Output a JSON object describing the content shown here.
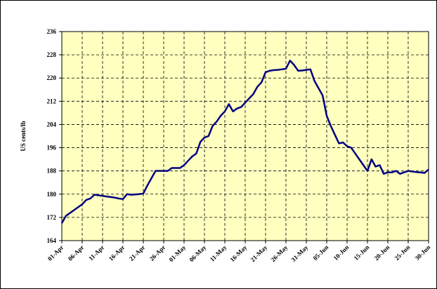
{
  "chart_data": {
    "type": "line",
    "y_label": "US cents/lb",
    "categories": [
      "01-Apr",
      null,
      null,
      null,
      null,
      "06-Apr",
      null,
      null,
      null,
      null,
      "11-Apr",
      null,
      null,
      null,
      null,
      "16-Apr",
      null,
      null,
      null,
      null,
      "21-Apr",
      null,
      null,
      null,
      null,
      "26-Apr",
      null,
      null,
      null,
      null,
      "01-May",
      null,
      null,
      null,
      null,
      "06-May",
      null,
      null,
      null,
      null,
      "11-May",
      null,
      null,
      null,
      null,
      "16-May",
      null,
      null,
      null,
      null,
      "21-May",
      null,
      null,
      null,
      null,
      "26-May",
      null,
      null,
      null,
      null,
      "31-May",
      null,
      null,
      null,
      null,
      "05-Jun",
      null,
      null,
      null,
      null,
      "10-Jun",
      null,
      null,
      null,
      null,
      "15-Jun",
      null,
      null,
      null,
      null,
      "20-Jun",
      null,
      null,
      null,
      null,
      "25-Jun",
      null,
      null,
      null,
      null,
      "30-Jun"
    ],
    "values": [
      170,
      172.5,
      173.5,
      174.5,
      175.5,
      176.5,
      178,
      178.5,
      179.8,
      179.6,
      179.4,
      179.2,
      179,
      178.8,
      178.5,
      178.3,
      180,
      179.8,
      179.9,
      180,
      180.2,
      183,
      185.5,
      188,
      188,
      188,
      188,
      189,
      189,
      189,
      190,
      191.5,
      193,
      194,
      198,
      199.5,
      200,
      203.5,
      205,
      207,
      208.5,
      211,
      208.5,
      209.5,
      210,
      211.5,
      213,
      214.5,
      217,
      218.5,
      222,
      222.5,
      222.7,
      222.8,
      223,
      223.2,
      226,
      224.5,
      222.5,
      222.6,
      222.8,
      223,
      219,
      216.5,
      214,
      207,
      203.5,
      200.5,
      197.5,
      197.8,
      196.5,
      196,
      194,
      192,
      190,
      188,
      192,
      189.5,
      190,
      187,
      187.5,
      187.5,
      188,
      187,
      187.5,
      188,
      187.8,
      187.6,
      187.5,
      187.3,
      188.5
    ],
    "color": "#000080",
    "ylim": [
      164,
      236
    ],
    "yticks": [
      164,
      172,
      180,
      188,
      196,
      204,
      212,
      220,
      228,
      236
    ],
    "grid": true,
    "plot_background": "#ffffc0"
  }
}
